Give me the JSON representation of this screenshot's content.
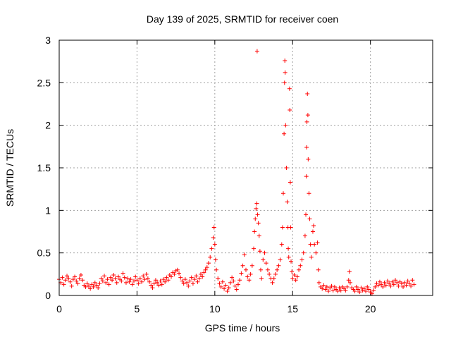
{
  "chart_data": {
    "type": "scatter",
    "title": "Day 139 of 2025, SRMTID for receiver coen",
    "xlabel": "GPS time / hours",
    "ylabel": "SRMTID / TECUs",
    "xlim": [
      0,
      24
    ],
    "ylim": [
      0,
      3
    ],
    "xticks": [
      0,
      5,
      10,
      15,
      20
    ],
    "yticks": [
      0,
      0.5,
      1,
      1.5,
      2,
      2.5,
      3
    ],
    "xtick_labels": [
      "0",
      "5",
      "10",
      "15",
      "20"
    ],
    "ytick_labels": [
      "0",
      "0.5",
      "1",
      "1.5",
      "2",
      "2.5",
      "3"
    ],
    "grid": true,
    "marker": "+",
    "series": [
      {
        "name": "SRMTID",
        "color": "#ff0000",
        "points": [
          [
            0.0,
            0.19
          ],
          [
            0.1,
            0.15
          ],
          [
            0.2,
            0.21
          ],
          [
            0.3,
            0.13
          ],
          [
            0.4,
            0.18
          ],
          [
            0.5,
            0.23
          ],
          [
            0.6,
            0.2
          ],
          [
            0.7,
            0.16
          ],
          [
            0.8,
            0.11
          ],
          [
            0.9,
            0.19
          ],
          [
            1.0,
            0.22
          ],
          [
            1.1,
            0.17
          ],
          [
            1.2,
            0.14
          ],
          [
            1.3,
            0.2
          ],
          [
            1.4,
            0.24
          ],
          [
            1.5,
            0.18
          ],
          [
            1.6,
            0.12
          ],
          [
            1.7,
            0.1
          ],
          [
            1.8,
            0.14
          ],
          [
            1.9,
            0.11
          ],
          [
            2.0,
            0.08
          ],
          [
            2.1,
            0.13
          ],
          [
            2.2,
            0.1
          ],
          [
            2.3,
            0.15
          ],
          [
            2.4,
            0.12
          ],
          [
            2.5,
            0.09
          ],
          [
            2.6,
            0.14
          ],
          [
            2.7,
            0.2
          ],
          [
            2.8,
            0.17
          ],
          [
            2.9,
            0.23
          ],
          [
            3.0,
            0.15
          ],
          [
            3.1,
            0.19
          ],
          [
            3.2,
            0.13
          ],
          [
            3.3,
            0.21
          ],
          [
            3.4,
            0.18
          ],
          [
            3.5,
            0.24
          ],
          [
            3.6,
            0.2
          ],
          [
            3.7,
            0.15
          ],
          [
            3.8,
            0.22
          ],
          [
            3.9,
            0.19
          ],
          [
            4.0,
            0.17
          ],
          [
            4.1,
            0.26
          ],
          [
            4.2,
            0.21
          ],
          [
            4.3,
            0.15
          ],
          [
            4.4,
            0.2
          ],
          [
            4.5,
            0.16
          ],
          [
            4.6,
            0.19
          ],
          [
            4.7,
            0.13
          ],
          [
            4.8,
            0.17
          ],
          [
            4.9,
            0.22
          ],
          [
            5.0,
            0.18
          ],
          [
            5.1,
            0.14
          ],
          [
            5.2,
            0.2
          ],
          [
            5.3,
            0.16
          ],
          [
            5.4,
            0.23
          ],
          [
            5.5,
            0.19
          ],
          [
            5.6,
            0.25
          ],
          [
            5.7,
            0.2
          ],
          [
            5.8,
            0.16
          ],
          [
            5.9,
            0.12
          ],
          [
            6.0,
            0.09
          ],
          [
            6.1,
            0.14
          ],
          [
            6.2,
            0.18
          ],
          [
            6.3,
            0.15
          ],
          [
            6.4,
            0.12
          ],
          [
            6.5,
            0.17
          ],
          [
            6.6,
            0.13
          ],
          [
            6.7,
            0.19
          ],
          [
            6.8,
            0.16
          ],
          [
            6.9,
            0.21
          ],
          [
            7.0,
            0.18
          ],
          [
            7.1,
            0.24
          ],
          [
            7.2,
            0.22
          ],
          [
            7.3,
            0.27
          ],
          [
            7.4,
            0.25
          ],
          [
            7.5,
            0.29
          ],
          [
            7.6,
            0.3
          ],
          [
            7.7,
            0.26
          ],
          [
            7.8,
            0.21
          ],
          [
            7.9,
            0.17
          ],
          [
            8.0,
            0.14
          ],
          [
            8.1,
            0.19
          ],
          [
            8.2,
            0.15
          ],
          [
            8.3,
            0.11
          ],
          [
            8.4,
            0.17
          ],
          [
            8.5,
            0.21
          ],
          [
            8.6,
            0.14
          ],
          [
            8.7,
            0.19
          ],
          [
            8.8,
            0.23
          ],
          [
            8.9,
            0.16
          ],
          [
            9.0,
            0.2
          ],
          [
            9.1,
            0.25
          ],
          [
            9.2,
            0.22
          ],
          [
            9.3,
            0.27
          ],
          [
            9.4,
            0.3
          ],
          [
            9.5,
            0.33
          ],
          [
            9.6,
            0.38
          ],
          [
            9.7,
            0.45
          ],
          [
            9.8,
            0.55
          ],
          [
            9.9,
            0.68
          ],
          [
            9.95,
            0.8
          ],
          [
            10.0,
            0.6
          ],
          [
            10.05,
            0.42
          ],
          [
            10.1,
            0.3
          ],
          [
            10.2,
            0.2
          ],
          [
            10.3,
            0.14
          ],
          [
            10.4,
            0.1
          ],
          [
            10.5,
            0.16
          ],
          [
            10.6,
            0.08
          ],
          [
            10.7,
            0.12
          ],
          [
            10.8,
            0.05
          ],
          [
            10.9,
            0.09
          ],
          [
            11.0,
            0.15
          ],
          [
            11.1,
            0.21
          ],
          [
            11.2,
            0.17
          ],
          [
            11.3,
            0.11
          ],
          [
            11.4,
            0.07
          ],
          [
            11.5,
            0.13
          ],
          [
            11.6,
            0.18
          ],
          [
            11.7,
            0.26
          ],
          [
            11.8,
            0.35
          ],
          [
            11.9,
            0.48
          ],
          [
            12.0,
            0.3
          ],
          [
            12.1,
            0.22
          ],
          [
            12.2,
            0.18
          ],
          [
            12.3,
            0.25
          ],
          [
            12.4,
            0.35
          ],
          [
            12.5,
            0.55
          ],
          [
            12.55,
            0.75
          ],
          [
            12.6,
            0.9
          ],
          [
            12.65,
            1.02
          ],
          [
            12.7,
            1.08
          ],
          [
            12.72,
            2.87
          ],
          [
            12.75,
            0.95
          ],
          [
            12.8,
            0.85
          ],
          [
            12.85,
            0.7
          ],
          [
            12.9,
            0.52
          ],
          [
            12.95,
            0.3
          ],
          [
            13.0,
            0.2
          ],
          [
            13.1,
            0.42
          ],
          [
            13.2,
            0.5
          ],
          [
            13.3,
            0.38
          ],
          [
            13.4,
            0.3
          ],
          [
            13.5,
            0.25
          ],
          [
            13.6,
            0.2
          ],
          [
            13.7,
            0.15
          ],
          [
            13.8,
            0.2
          ],
          [
            13.9,
            0.25
          ],
          [
            14.0,
            0.3
          ],
          [
            14.1,
            0.35
          ],
          [
            14.2,
            0.42
          ],
          [
            14.3,
            0.6
          ],
          [
            14.35,
            0.8
          ],
          [
            14.4,
            1.2
          ],
          [
            14.45,
            1.9
          ],
          [
            14.48,
            2.5
          ],
          [
            14.5,
            2.76
          ],
          [
            14.52,
            2.62
          ],
          [
            14.55,
            2.0
          ],
          [
            14.6,
            1.5
          ],
          [
            14.65,
            1.1
          ],
          [
            14.7,
            0.8
          ],
          [
            14.72,
            0.55
          ],
          [
            14.75,
            0.45
          ],
          [
            14.8,
            2.43
          ],
          [
            14.82,
            2.18
          ],
          [
            14.85,
            1.33
          ],
          [
            14.88,
            0.8
          ],
          [
            14.9,
            0.4
          ],
          [
            14.95,
            0.28
          ],
          [
            15.0,
            0.2
          ],
          [
            15.1,
            0.24
          ],
          [
            15.2,
            0.18
          ],
          [
            15.3,
            0.22
          ],
          [
            15.4,
            0.3
          ],
          [
            15.5,
            0.35
          ],
          [
            15.6,
            0.42
          ],
          [
            15.7,
            0.5
          ],
          [
            15.8,
            0.7
          ],
          [
            15.85,
            0.95
          ],
          [
            15.88,
            1.4
          ],
          [
            15.9,
            1.74
          ],
          [
            15.92,
            2.04
          ],
          [
            15.95,
            2.37
          ],
          [
            15.98,
            2.12
          ],
          [
            16.0,
            1.6
          ],
          [
            16.05,
            1.2
          ],
          [
            16.1,
            0.9
          ],
          [
            16.15,
            0.6
          ],
          [
            16.2,
            0.45
          ],
          [
            16.3,
            0.75
          ],
          [
            16.35,
            0.82
          ],
          [
            16.4,
            0.6
          ],
          [
            16.5,
            0.5
          ],
          [
            16.6,
            0.62
          ],
          [
            16.65,
            0.3
          ],
          [
            16.7,
            0.15
          ],
          [
            16.8,
            0.1
          ],
          [
            16.9,
            0.08
          ],
          [
            17.0,
            0.12
          ],
          [
            17.1,
            0.07
          ],
          [
            17.2,
            0.1
          ],
          [
            17.3,
            0.05
          ],
          [
            17.4,
            0.09
          ],
          [
            17.5,
            0.11
          ],
          [
            17.6,
            0.06
          ],
          [
            17.7,
            0.1
          ],
          [
            17.8,
            0.07
          ],
          [
            17.9,
            0.05
          ],
          [
            18.0,
            0.09
          ],
          [
            18.1,
            0.06
          ],
          [
            18.2,
            0.1
          ],
          [
            18.3,
            0.08
          ],
          [
            18.4,
            0.06
          ],
          [
            18.5,
            0.1
          ],
          [
            18.6,
            0.18
          ],
          [
            18.65,
            0.28
          ],
          [
            18.7,
            0.15
          ],
          [
            18.8,
            0.09
          ],
          [
            18.9,
            0.07
          ],
          [
            19.0,
            0.05
          ],
          [
            19.1,
            0.1
          ],
          [
            19.2,
            0.07
          ],
          [
            19.3,
            0.04
          ],
          [
            19.4,
            0.09
          ],
          [
            19.5,
            0.06
          ],
          [
            19.6,
            0.08
          ],
          [
            19.7,
            0.05
          ],
          [
            19.8,
            0.1
          ],
          [
            19.9,
            0.07
          ],
          [
            20.0,
            0.04
          ],
          [
            20.1,
            0.02
          ],
          [
            20.2,
            0.06
          ],
          [
            20.3,
            0.1
          ],
          [
            20.4,
            0.14
          ],
          [
            20.5,
            0.12
          ],
          [
            20.6,
            0.16
          ],
          [
            20.7,
            0.13
          ],
          [
            20.8,
            0.1
          ],
          [
            20.9,
            0.15
          ],
          [
            21.0,
            0.12
          ],
          [
            21.1,
            0.17
          ],
          [
            21.2,
            0.14
          ],
          [
            21.3,
            0.11
          ],
          [
            21.4,
            0.16
          ],
          [
            21.5,
            0.13
          ],
          [
            21.6,
            0.18
          ],
          [
            21.7,
            0.15
          ],
          [
            21.8,
            0.11
          ],
          [
            21.9,
            0.16
          ],
          [
            22.0,
            0.14
          ],
          [
            22.1,
            0.1
          ],
          [
            22.2,
            0.15
          ],
          [
            22.3,
            0.12
          ],
          [
            22.4,
            0.17
          ],
          [
            22.5,
            0.14
          ],
          [
            22.6,
            0.11
          ],
          [
            22.7,
            0.18
          ],
          [
            22.8,
            0.13
          ]
        ]
      }
    ]
  }
}
